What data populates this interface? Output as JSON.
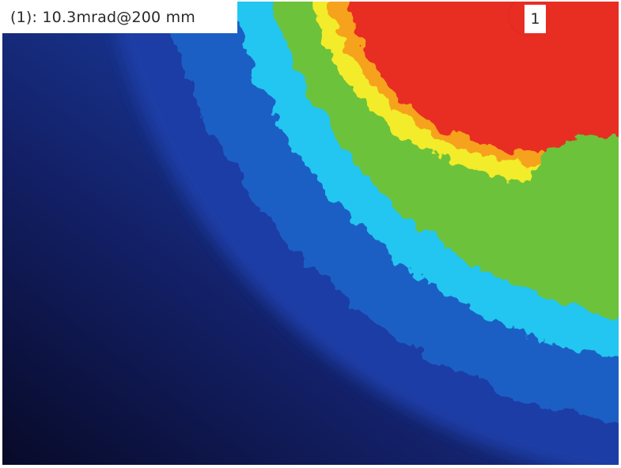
{
  "image": {
    "title": "(1): 10.3mrad@200 mm",
    "marker_label": "1",
    "colormap": [
      "#0b0d2e",
      "#16287a",
      "#1e5fc4",
      "#24c6f0",
      "#6cc23a",
      "#f2ec2a",
      "#f7a21a",
      "#e82d20"
    ]
  }
}
